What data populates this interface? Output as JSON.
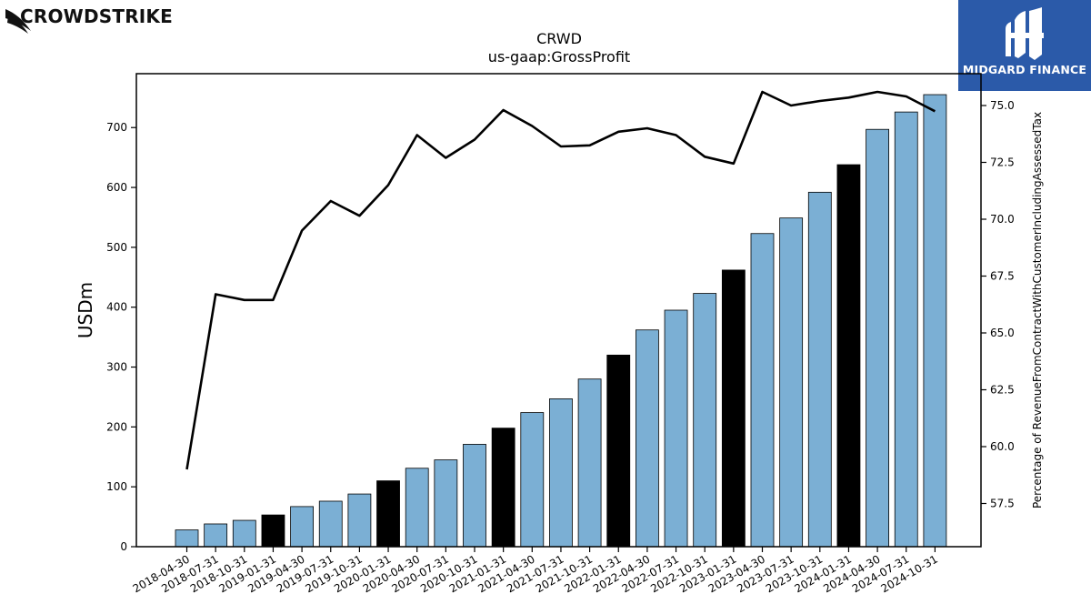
{
  "brand": {
    "name": "CROWDSTRIKE",
    "logo_icon": "falcon-icon"
  },
  "publisher": {
    "name": "MIDGARD FINANCE",
    "logo_icon": "midgard-logo-icon",
    "bg_color": "#2b5aa9"
  },
  "chart_data": {
    "type": "bar",
    "title": "CRWD",
    "subtitle": "us-gaap:GrossProfit",
    "ylabel": "USDm",
    "y2label": "Percentage of RevenueFromContractWithCustomerIncludingAssessedTax",
    "ylim": [
      0,
      790
    ],
    "y2lim": [
      55.6,
      76.4
    ],
    "yticks": [
      0,
      100,
      200,
      300,
      400,
      500,
      600,
      700
    ],
    "y2ticks": [
      57.5,
      60.0,
      62.5,
      65.0,
      67.5,
      70.0,
      72.5,
      75.0
    ],
    "grid": false,
    "bar_color": "#7bafd4",
    "highlight_color": "#000000",
    "line_color": "#000000",
    "categories": [
      "2018-04-30",
      "2018-07-31",
      "2018-10-31",
      "2019-01-31",
      "2019-04-30",
      "2019-07-31",
      "2019-10-31",
      "2020-01-31",
      "2020-04-30",
      "2020-07-31",
      "2020-10-31",
      "2021-01-31",
      "2021-04-30",
      "2021-07-31",
      "2021-10-31",
      "2022-01-31",
      "2022-04-30",
      "2022-07-31",
      "2022-10-31",
      "2023-01-31",
      "2023-04-30",
      "2023-07-31",
      "2023-10-31",
      "2024-01-31",
      "2024-04-30",
      "2024-07-31",
      "2024-10-31"
    ],
    "series": [
      {
        "type": "bar",
        "axis": "left",
        "values": [
          28,
          38,
          44,
          53,
          67,
          76,
          88,
          110,
          131,
          145,
          171,
          198,
          224,
          247,
          280,
          320,
          362,
          395,
          423,
          462,
          523,
          549,
          592,
          638,
          697,
          726,
          755
        ],
        "highlight": [
          false,
          false,
          false,
          true,
          false,
          false,
          false,
          true,
          false,
          false,
          false,
          true,
          false,
          false,
          false,
          true,
          false,
          false,
          false,
          true,
          false,
          false,
          false,
          true,
          false,
          false,
          false
        ]
      },
      {
        "type": "line",
        "axis": "right",
        "values": [
          59.0,
          66.7,
          66.45,
          66.45,
          69.5,
          70.8,
          70.15,
          71.5,
          73.7,
          72.7,
          73.5,
          74.8,
          74.1,
          73.2,
          73.25,
          73.85,
          74.0,
          73.7,
          72.75,
          72.45,
          75.6,
          75.0,
          75.2,
          75.35,
          75.6,
          75.4,
          74.75
        ]
      }
    ]
  }
}
